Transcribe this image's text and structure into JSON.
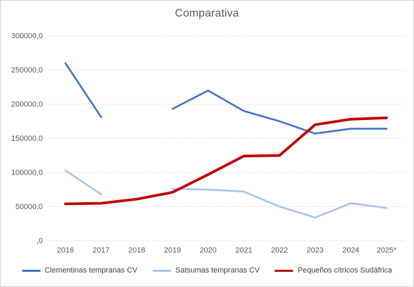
{
  "window": {
    "background": "#ffffff",
    "border_color": "#d6d6d6"
  },
  "chart_data": {
    "type": "line",
    "title": "Comparativa",
    "categories": [
      "2016",
      "2017",
      "2018",
      "2019",
      "2020",
      "2021",
      "2022",
      "2023",
      "2024",
      "2025*"
    ],
    "series": [
      {
        "name": "Clementinas tempranas CV",
        "color": "#4472c4",
        "values": [
          260000,
          181000,
          null,
          193000,
          220000,
          190000,
          175000,
          157000,
          164000,
          164000
        ]
      },
      {
        "name": "Satsumas tempranas CV",
        "color": "#aac4e8",
        "values": [
          103000,
          68000,
          null,
          76000,
          75000,
          72000,
          50000,
          34000,
          55000,
          48000
        ]
      },
      {
        "name": "Pequeños cítricos Sudáfrica",
        "color": "#c00000",
        "values": [
          54000,
          55000,
          61000,
          71000,
          97000,
          124000,
          125000,
          170000,
          178000,
          180000
        ]
      }
    ],
    "y_axis": {
      "min": 0,
      "max": 300000,
      "step": 50000,
      "tick_labels": [
        ",0",
        "50000,0",
        "100000,0",
        "150000,0",
        "200000,0",
        "250000,0",
        "300000,0"
      ]
    },
    "x_axis_label": "",
    "y_axis_label": "",
    "grid": true,
    "grid_color": "#d9d9d9",
    "text_color": "#595959",
    "legend_position": "bottom"
  }
}
